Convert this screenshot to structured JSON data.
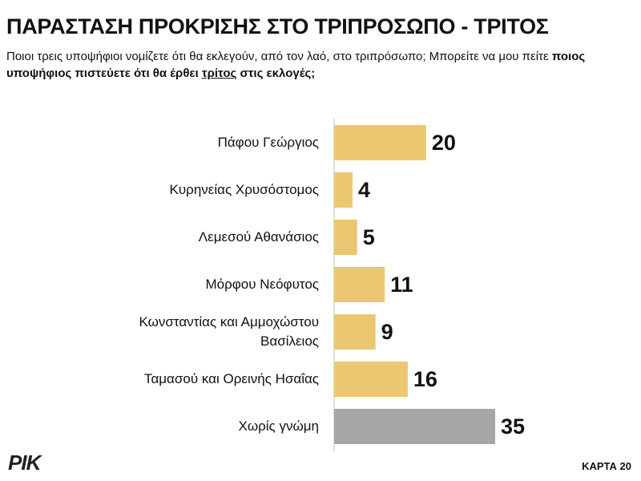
{
  "chart_data": {
    "type": "bar",
    "orientation": "horizontal",
    "title": "ΠΑΡΑΣΤΑΣΗ ΠΡΟΚΡΙΣΗΣ ΣΤΟ ΤΡΙΠΡΟΣΩΠΟ - ΤΡΙΤΟΣ",
    "subtitle": {
      "plain": "Ποιοι τρεις υποψήφιοι νομίζετε ότι θα εκλεγούν, από τον λαό, στο τριπρόσωπο; Μπορείτε να μου πείτε",
      "bold": "ποιος υποψήφιος πιστεύετε ότι θα έρθει",
      "underlined": "τρίτος",
      "bold_end": "στις εκλογές;"
    },
    "categories": [
      "Πάφου Γεώργιος",
      "Κυρηνείας Χρυσόστομος",
      "Λεμεσού Αθανάσιος",
      "Μόρφου Νεόφυτος",
      "Κωνσταντίας και Αμμοχώστου Βασίλειος",
      "Ταμασού και Ορεινής Ησαΐας",
      "Χωρίς γνώμη"
    ],
    "values": [
      20,
      4,
      5,
      11,
      9,
      16,
      35
    ],
    "colors": [
      "#ebc771",
      "#ebc771",
      "#ebc771",
      "#ebc771",
      "#ebc771",
      "#ebc771",
      "#a6a6a6"
    ]
  },
  "footer": {
    "logo": "ΡΙΚ",
    "page": "ΚΑΡΤΑ 20"
  }
}
